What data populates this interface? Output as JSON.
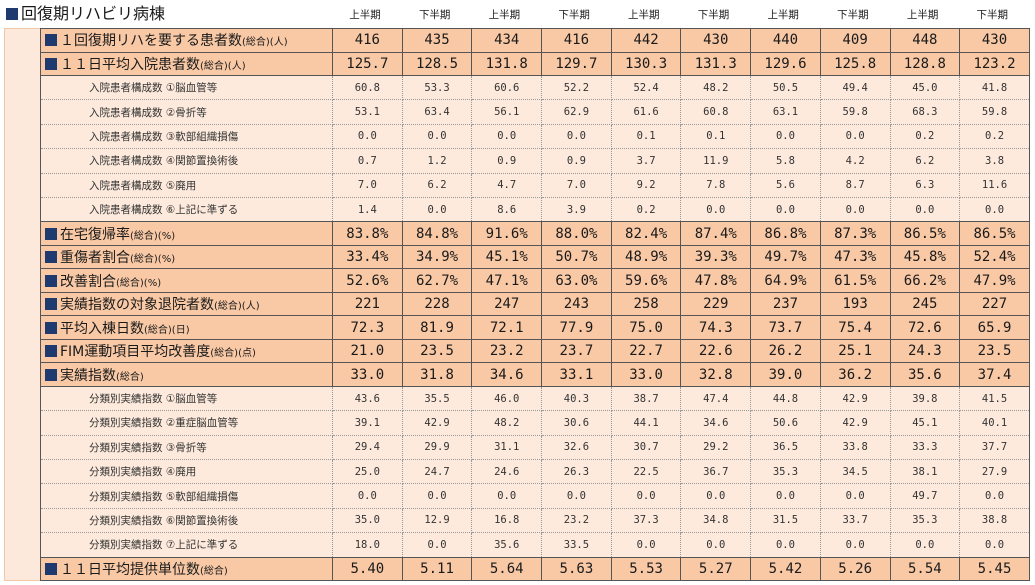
{
  "title": "回復期リハビリ病棟",
  "periods": [
    "上半期",
    "下半期",
    "上半期",
    "下半期",
    "上半期",
    "下半期",
    "上半期",
    "下半期",
    "上半期",
    "下半期"
  ],
  "rows": [
    {
      "type": "main",
      "label": "１回復期リハを要する患者数",
      "suffix": "(総合)(人)",
      "values": [
        "416",
        "435",
        "434",
        "416",
        "442",
        "430",
        "440",
        "409",
        "448",
        "430"
      ]
    },
    {
      "type": "main",
      "label": "１１日平均入院患者数",
      "suffix": "(総合)(人)",
      "values": [
        "125.7",
        "128.5",
        "131.8",
        "129.7",
        "130.3",
        "131.3",
        "129.6",
        "125.8",
        "128.8",
        "123.2"
      ]
    },
    {
      "type": "sub",
      "label": "入院患者構成数 ①脳血管等",
      "values": [
        "60.8",
        "53.3",
        "60.6",
        "52.2",
        "52.4",
        "48.2",
        "50.5",
        "49.4",
        "45.0",
        "41.8"
      ]
    },
    {
      "type": "sub",
      "label": "入院患者構成数 ②骨折等",
      "values": [
        "53.1",
        "63.4",
        "56.1",
        "62.9",
        "61.6",
        "60.8",
        "63.1",
        "59.8",
        "68.3",
        "59.8"
      ]
    },
    {
      "type": "sub",
      "label": "入院患者構成数 ③軟部組織損傷",
      "values": [
        "0.0",
        "0.0",
        "0.0",
        "0.0",
        "0.1",
        "0.1",
        "0.0",
        "0.0",
        "0.2",
        "0.2"
      ]
    },
    {
      "type": "sub",
      "label": "入院患者構成数 ④関節置換術後",
      "values": [
        "0.7",
        "1.2",
        "0.9",
        "0.9",
        "3.7",
        "11.9",
        "5.8",
        "4.2",
        "6.2",
        "3.8"
      ]
    },
    {
      "type": "sub",
      "label": "入院患者構成数 ⑤廃用",
      "values": [
        "7.0",
        "6.2",
        "4.7",
        "7.0",
        "9.2",
        "7.8",
        "5.6",
        "8.7",
        "6.3",
        "11.6"
      ]
    },
    {
      "type": "sub",
      "label": "入院患者構成数 ⑥上記に準ずる",
      "values": [
        "1.4",
        "0.0",
        "8.6",
        "3.9",
        "0.2",
        "0.0",
        "0.0",
        "0.0",
        "0.0",
        "0.0"
      ]
    },
    {
      "type": "main",
      "label": "在宅復帰率",
      "suffix": "(総合)(%)",
      "values": [
        "83.8%",
        "84.8%",
        "91.6%",
        "88.0%",
        "82.4%",
        "87.4%",
        "86.8%",
        "87.3%",
        "86.5%",
        "86.5%"
      ]
    },
    {
      "type": "main",
      "label": "重傷者割合",
      "suffix": "(総合)(%)",
      "values": [
        "33.4%",
        "34.9%",
        "45.1%",
        "50.7%",
        "48.9%",
        "39.3%",
        "49.7%",
        "47.3%",
        "45.8%",
        "52.4%"
      ]
    },
    {
      "type": "main",
      "label": "改善割合",
      "suffix": "(総合)(%)",
      "values": [
        "52.6%",
        "62.7%",
        "47.1%",
        "63.0%",
        "59.6%",
        "47.8%",
        "64.9%",
        "61.5%",
        "66.2%",
        "47.9%"
      ]
    },
    {
      "type": "main",
      "label": "実績指数の対象退院者数",
      "suffix": "(総合)(人)",
      "values": [
        "221",
        "228",
        "247",
        "243",
        "258",
        "229",
        "237",
        "193",
        "245",
        "227"
      ]
    },
    {
      "type": "main",
      "label": "平均入棟日数",
      "suffix": "(総合)(日)",
      "values": [
        "72.3",
        "81.9",
        "72.1",
        "77.9",
        "75.0",
        "74.3",
        "73.7",
        "75.4",
        "72.6",
        "65.9"
      ]
    },
    {
      "type": "main",
      "label": "FIM運動項目平均改善度",
      "suffix": "(総合)(点)",
      "values": [
        "21.0",
        "23.5",
        "23.2",
        "23.7",
        "22.7",
        "22.6",
        "26.2",
        "25.1",
        "24.3",
        "23.5"
      ]
    },
    {
      "type": "main",
      "label": "実績指数",
      "suffix": "(総合)",
      "values": [
        "33.0",
        "31.8",
        "34.6",
        "33.1",
        "33.0",
        "32.8",
        "39.0",
        "36.2",
        "35.6",
        "37.4"
      ]
    },
    {
      "type": "sub",
      "label": "分類別実績指数 ①脳血管等",
      "values": [
        "43.6",
        "35.5",
        "46.0",
        "40.3",
        "38.7",
        "47.4",
        "44.8",
        "42.9",
        "39.8",
        "41.5"
      ]
    },
    {
      "type": "sub",
      "label": "分類別実績指数 ②重症脳血管等",
      "values": [
        "39.1",
        "42.9",
        "48.2",
        "30.6",
        "44.1",
        "34.6",
        "50.6",
        "42.9",
        "45.1",
        "40.1"
      ]
    },
    {
      "type": "sub",
      "label": "分類別実績指数 ③骨折等",
      "values": [
        "29.4",
        "29.9",
        "31.1",
        "32.6",
        "30.7",
        "29.2",
        "36.5",
        "33.8",
        "33.3",
        "37.7"
      ]
    },
    {
      "type": "sub",
      "label": "分類別実績指数 ④廃用",
      "values": [
        "25.0",
        "24.7",
        "24.6",
        "26.3",
        "22.5",
        "36.7",
        "35.3",
        "34.5",
        "38.1",
        "27.9"
      ]
    },
    {
      "type": "sub",
      "label": "分類別実績指数 ⑤軟部組織損傷",
      "values": [
        "0.0",
        "0.0",
        "0.0",
        "0.0",
        "0.0",
        "0.0",
        "0.0",
        "0.0",
        "49.7",
        "0.0"
      ]
    },
    {
      "type": "sub",
      "label": "分類別実績指数 ⑥関節置換術後",
      "values": [
        "35.0",
        "12.9",
        "16.8",
        "23.2",
        "37.3",
        "34.8",
        "31.5",
        "33.7",
        "35.3",
        "38.8"
      ]
    },
    {
      "type": "sub",
      "label": "分類別実績指数 ⑦上記に準ずる",
      "values": [
        "18.0",
        "0.0",
        "35.6",
        "33.5",
        "0.0",
        "0.0",
        "0.0",
        "0.0",
        "0.0",
        "0.0"
      ]
    },
    {
      "type": "main",
      "label": "１１日平均提供単位数",
      "suffix": "(総合)",
      "values": [
        "5.40",
        "5.11",
        "5.64",
        "5.63",
        "5.53",
        "5.27",
        "5.42",
        "5.26",
        "5.54",
        "5.45"
      ]
    }
  ],
  "colors": {
    "main_bg": "#f9c9a6",
    "sub_bg": "#fdeadc",
    "square": "#1f3a6e"
  }
}
